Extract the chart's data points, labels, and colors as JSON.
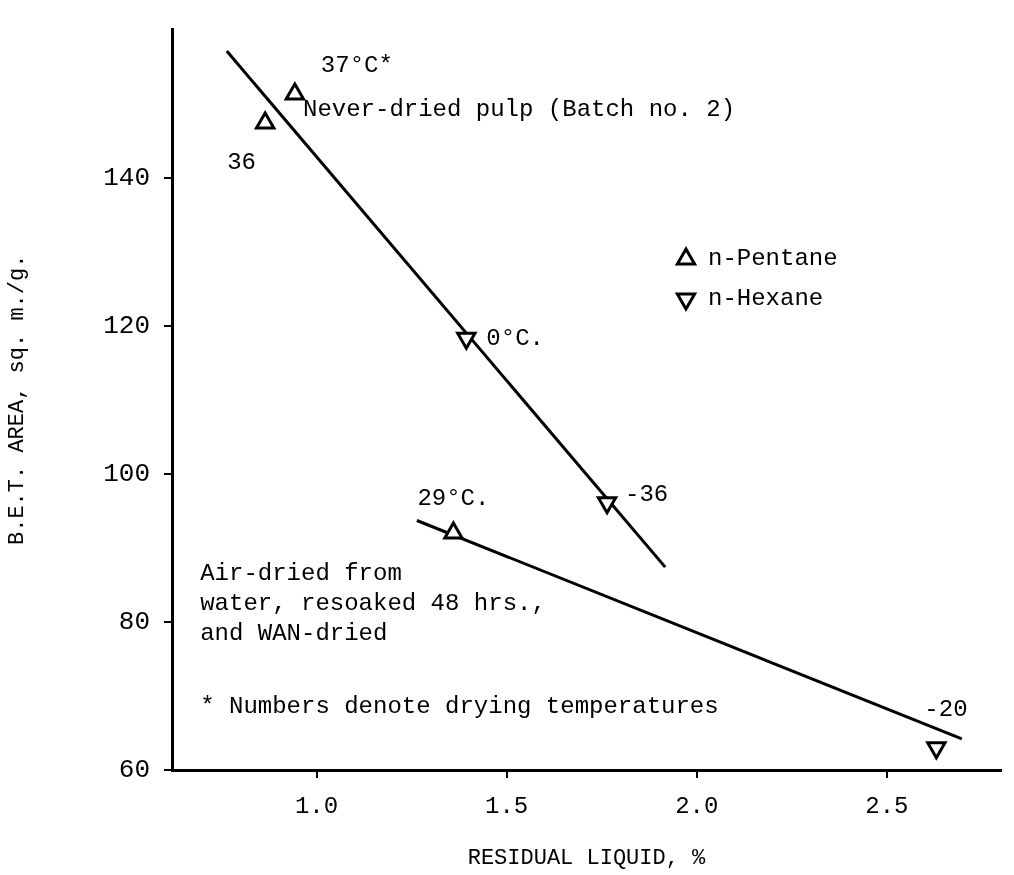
{
  "chart_data": {
    "type": "scatter",
    "xlabel": "RESIDUAL LIQUID, %",
    "ylabel": "B.E.T. AREA, sq. m./g.",
    "xlim": [
      0.62,
      2.8
    ],
    "ylim": [
      60,
      160
    ],
    "xticks": [
      {
        "value": 1,
        "label": "1.0"
      },
      {
        "value": 1.5,
        "label": "1.5"
      },
      {
        "value": 2,
        "label": "2.0"
      },
      {
        "value": 2.5,
        "label": "2.5"
      }
    ],
    "yticks": [
      60,
      80,
      100,
      120,
      140
    ],
    "grid": false,
    "legend": "right",
    "series": [
      {
        "name": "n-Pentane",
        "color": "#000000",
        "marker": "triangle",
        "x": [
          0.865,
          0.943,
          1.36
        ],
        "values": [
          147.4,
          151.3,
          92.0
        ]
      },
      {
        "name": "n-Hexane",
        "color": "#000000",
        "marker": "triangle-down",
        "x": [
          1.394,
          1.764,
          2.63
        ],
        "values": [
          118.3,
          96.1,
          63.0
        ]
      },
      {
        "type": "line",
        "color": "#000000",
        "marker": "none",
        "x": [
          0.764,
          1.917
        ],
        "values": [
          157.1,
          87.4
        ]
      },
      {
        "type": "line",
        "color": "#000000",
        "marker": "none",
        "x": [
          1.264,
          2.697
        ],
        "values": [
          93.7,
          64.2
        ]
      }
    ],
    "annotations": [
      {
        "text": "37°C*",
        "x": 0.943,
        "y": 151.3
      },
      {
        "text": "36",
        "x": 0.865,
        "y": 147.4
      },
      {
        "text": "0°C.",
        "x": 1.394,
        "y": 118.3
      },
      {
        "text": "-36",
        "x": 1.764,
        "y": 96.1
      },
      {
        "text": "29°C.",
        "x": 1.36,
        "y": 92.0
      },
      {
        "text": "-20",
        "x": 2.63,
        "y": 63.0
      },
      "Never-dried pulp (Batch no. 2)",
      "Air-dried from\nwater, resoaked 48 hrs.,\nand WAN-dried",
      "* Numbers denote drying temperatures"
    ]
  }
}
